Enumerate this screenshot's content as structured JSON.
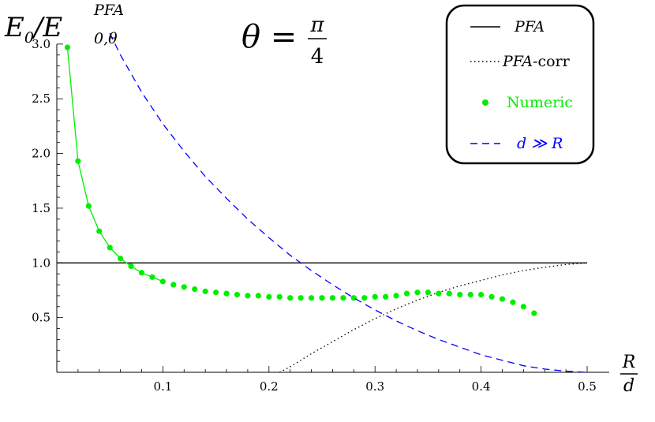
{
  "chart_data": {
    "type": "line",
    "ylabel": "E0/E0,θ^PFA",
    "ylabel_main": "E",
    "ylabel_sub0": "0",
    "ylabel_slash": "/E",
    "ylabel_sub": "0,θ",
    "ylabel_sup": "PFA",
    "xlabel_num": "R",
    "xlabel_den": "d",
    "annotation_lhs": "θ = ",
    "annotation_num": "π",
    "annotation_den": "4",
    "xlim": [
      0,
      0.5
    ],
    "ylim": [
      0,
      3.1
    ],
    "x_ticks": [
      "0.1",
      "0.2",
      "0.3",
      "0.4",
      "0.5"
    ],
    "y_ticks": [
      "0.5",
      "1.0",
      "1.5",
      "2.0",
      "2.5",
      "3.0"
    ],
    "legend_position": "top-right",
    "legend": [
      {
        "key": "pfa",
        "label": "PFA",
        "style": "solid",
        "color": "#000000"
      },
      {
        "key": "pfacorr",
        "label": "PFA-corr",
        "label_it": "PFA",
        "label_rest": "-corr",
        "style": "dotted",
        "color": "#000000"
      },
      {
        "key": "numeric",
        "label": "Numeric",
        "style": "points",
        "color": "#00ee00"
      },
      {
        "key": "far",
        "label": "d ≫ R",
        "style": "dashed",
        "color": "#0000ff"
      }
    ],
    "series": [
      {
        "name": "PFA",
        "style": "solid",
        "color": "#000000",
        "x": [
          0,
          0.5
        ],
        "y": [
          1.0,
          1.0
        ]
      },
      {
        "name": "PFA-corr",
        "style": "dotted",
        "color": "#000000",
        "x": [
          0.21,
          0.22,
          0.24,
          0.26,
          0.28,
          0.3,
          0.32,
          0.34,
          0.36,
          0.38,
          0.4,
          0.42,
          0.44,
          0.46,
          0.48,
          0.5
        ],
        "y": [
          0.0,
          0.05,
          0.17,
          0.28,
          0.39,
          0.49,
          0.58,
          0.66,
          0.73,
          0.79,
          0.84,
          0.89,
          0.93,
          0.96,
          0.985,
          1.0
        ]
      },
      {
        "name": "Numeric",
        "style": "points",
        "color": "#00ee00",
        "x": [
          0.01,
          0.02,
          0.03,
          0.04,
          0.05,
          0.06,
          0.07,
          0.08,
          0.09,
          0.1,
          0.11,
          0.12,
          0.13,
          0.14,
          0.15,
          0.16,
          0.17,
          0.18,
          0.19,
          0.2,
          0.21,
          0.22,
          0.23,
          0.24,
          0.25,
          0.26,
          0.27,
          0.28,
          0.29,
          0.3,
          0.31,
          0.32,
          0.33,
          0.34,
          0.35,
          0.36,
          0.37,
          0.38,
          0.39,
          0.4,
          0.41,
          0.42,
          0.43,
          0.44,
          0.45
        ],
        "y": [
          2.97,
          1.93,
          1.52,
          1.29,
          1.14,
          1.04,
          0.97,
          0.91,
          0.87,
          0.83,
          0.8,
          0.78,
          0.76,
          0.74,
          0.73,
          0.72,
          0.71,
          0.7,
          0.7,
          0.69,
          0.69,
          0.68,
          0.68,
          0.68,
          0.68,
          0.68,
          0.68,
          0.68,
          0.68,
          0.69,
          0.69,
          0.7,
          0.72,
          0.73,
          0.73,
          0.72,
          0.72,
          0.71,
          0.71,
          0.71,
          0.69,
          0.67,
          0.64,
          0.6,
          0.54
        ]
      },
      {
        "name": "d ≫ R",
        "style": "dashed",
        "color": "#0000ff",
        "x": [
          0.05,
          0.06,
          0.08,
          0.1,
          0.12,
          0.14,
          0.16,
          0.18,
          0.2,
          0.22,
          0.24,
          0.26,
          0.28,
          0.3,
          0.32,
          0.34,
          0.36,
          0.38,
          0.4,
          0.42,
          0.44,
          0.46,
          0.48,
          0.5
        ],
        "y": [
          3.1,
          2.9,
          2.56,
          2.27,
          2.02,
          1.79,
          1.59,
          1.4,
          1.23,
          1.07,
          0.93,
          0.8,
          0.68,
          0.57,
          0.47,
          0.38,
          0.3,
          0.23,
          0.16,
          0.11,
          0.06,
          0.03,
          0.01,
          0.0
        ]
      }
    ]
  }
}
